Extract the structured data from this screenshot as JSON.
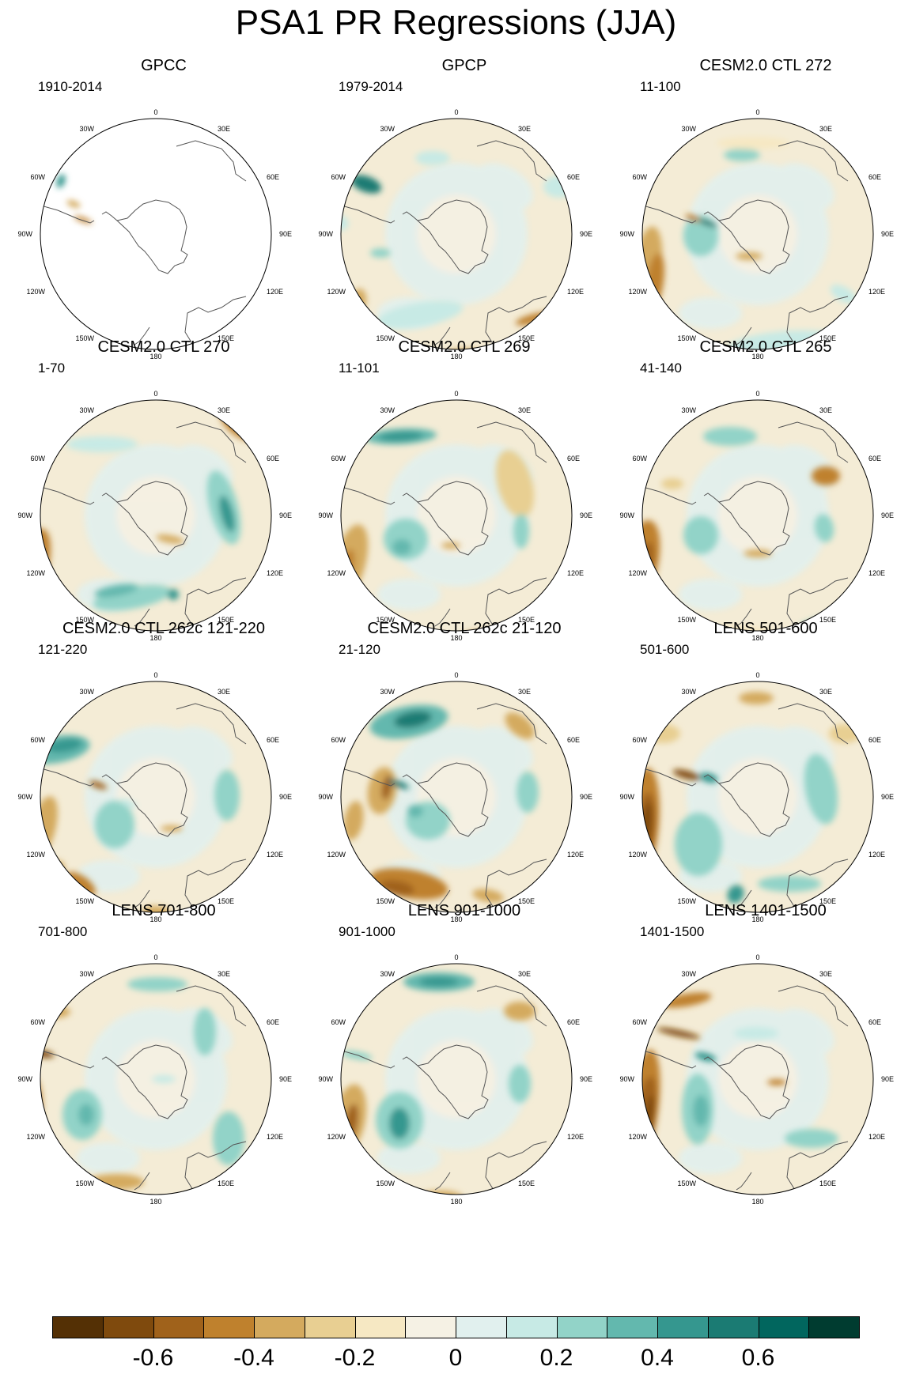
{
  "title": "PSA1 PR Regressions (JJA)",
  "lon_labels": [
    "0",
    "30E",
    "60E",
    "90E",
    "120E",
    "150E",
    "180",
    "150W",
    "120W",
    "90W",
    "60W",
    "30W"
  ],
  "panels": [
    {
      "title": "GPCC",
      "period": "1910-2014",
      "field": "sparse"
    },
    {
      "title": "GPCP",
      "period": "1979-2014",
      "field": "obs"
    },
    {
      "title": "CESM2.0 CTL 272",
      "period": "11-100",
      "field": "model"
    },
    {
      "title": "CESM2.0 CTL 270",
      "period": "1-70",
      "field": "model"
    },
    {
      "title": "CESM2.0 CTL 269",
      "period": "11-101",
      "field": "model"
    },
    {
      "title": "CESM2.0 CTL 265",
      "period": "41-140",
      "field": "model"
    },
    {
      "title": "CESM2.0 CTL 262c 121-220",
      "period": "121-220",
      "field": "model"
    },
    {
      "title": "CESM2.0 CTL 262c 21-120",
      "period": "21-120",
      "field": "model"
    },
    {
      "title": "LENS 501-600",
      "period": "501-600",
      "field": "model"
    },
    {
      "title": "LENS 701-800",
      "period": "701-800",
      "field": "model"
    },
    {
      "title": "LENS 901-1000",
      "period": "901-1000",
      "field": "model"
    },
    {
      "title": "LENS 1401-1500",
      "period": "1401-1500",
      "field": "model"
    }
  ],
  "colorbar": {
    "colors": [
      "#543005",
      "#7f4a0d",
      "#a0621b",
      "#bf812d",
      "#d4aa5e",
      "#e8cf92",
      "#f6e8c3",
      "#f5f1e4",
      "#e1f0ee",
      "#c7eae5",
      "#92d3c8",
      "#63b8ae",
      "#35978f",
      "#1b7b73",
      "#01665e",
      "#003c30"
    ],
    "labels": [
      "-0.6",
      "-0.4",
      "-0.2",
      "0",
      "0.2",
      "0.4",
      "0.6"
    ]
  }
}
